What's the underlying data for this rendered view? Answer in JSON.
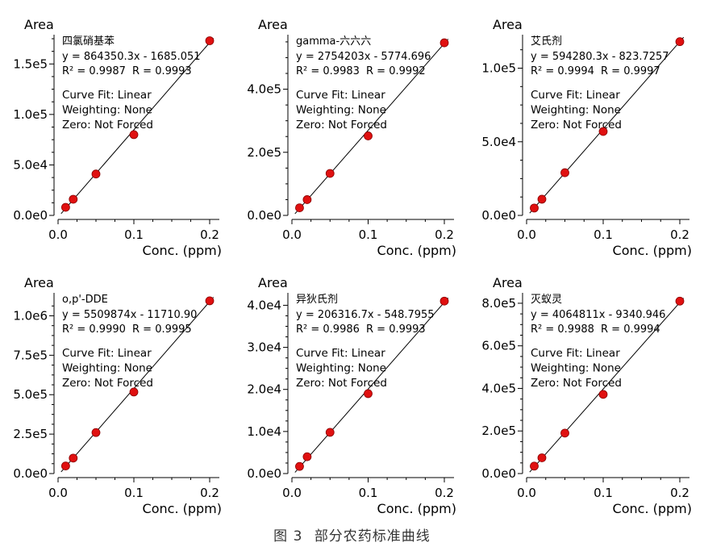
{
  "figure": {
    "caption_label": "图 3",
    "caption_text": "部分农药标准曲线"
  },
  "chart_data": [
    {
      "type": "scatter",
      "title": "四氯硝基苯",
      "xlabel": "Conc. (ppm)",
      "ylabel": "Area",
      "xlim": [
        0,
        0.2
      ],
      "ylim": [
        0,
        175000
      ],
      "xticks": [
        0.0,
        0.1,
        0.2
      ],
      "xtick_labels": [
        "0.0",
        "0.1",
        "0.2"
      ],
      "yticks": [
        0,
        50000,
        100000,
        150000
      ],
      "ytick_labels": [
        "0.0e0",
        "5.0e4",
        "1.0e5",
        "1.5e5"
      ],
      "equation": "y = 864350.3x - 1685.051",
      "r_squared": "R² = 0.9987",
      "r_value": "R = 0.9993",
      "slope": 864350.3,
      "intercept": -1685.051,
      "notes": [
        "Curve Fit: Linear",
        "Weighting: None",
        "Zero: Not Forced"
      ],
      "x": [
        0.01,
        0.02,
        0.05,
        0.1,
        0.2
      ],
      "y": [
        8000,
        16000,
        41000,
        80000,
        173000
      ]
    },
    {
      "type": "scatter",
      "title": "gamma-六六六",
      "xlabel": "Conc. (ppm)",
      "ylabel": "Area",
      "xlim": [
        0,
        0.2
      ],
      "ylim": [
        0,
        560000
      ],
      "xticks": [
        0.0,
        0.1,
        0.2
      ],
      "xtick_labels": [
        "0.0",
        "0.1",
        "0.2"
      ],
      "yticks": [
        0,
        200000,
        400000
      ],
      "ytick_labels": [
        "0.0e0",
        "2.0e5",
        "4.0e5"
      ],
      "equation": "y = 2754203x - 5774.696",
      "r_squared": "R² = 0.9983",
      "r_value": "R = 0.9992",
      "slope": 2754203,
      "intercept": -5774.696,
      "notes": [
        "Curve Fit: Linear",
        "Weighting: None",
        "Zero: Not Forced"
      ],
      "x": [
        0.01,
        0.02,
        0.05,
        0.1,
        0.2
      ],
      "y": [
        24000,
        50000,
        133000,
        252000,
        547000
      ]
    },
    {
      "type": "scatter",
      "title": "艾氏剂",
      "xlabel": "Conc. (ppm)",
      "ylabel": "Area",
      "xlim": [
        0,
        0.2
      ],
      "ylim": [
        0,
        120000
      ],
      "xticks": [
        0.0,
        0.1,
        0.2
      ],
      "xtick_labels": [
        "0.0",
        "0.1",
        "0.2"
      ],
      "yticks": [
        0,
        50000,
        100000
      ],
      "ytick_labels": [
        "0.0e0",
        "5.0e4",
        "1.0e5"
      ],
      "equation": "y = 594280.3x - 823.7257",
      "r_squared": "R² = 0.9994",
      "r_value": "R = 0.9997",
      "slope": 594280.3,
      "intercept": -823.7257,
      "notes": [
        "Curve Fit: Linear",
        "Weighting: None",
        "Zero: Not Forced"
      ],
      "x": [
        0.01,
        0.02,
        0.05,
        0.1,
        0.2
      ],
      "y": [
        5000,
        11000,
        29000,
        57000,
        118000
      ]
    },
    {
      "type": "scatter",
      "title": "o,p'-DDE",
      "xlabel": "Conc. (ppm)",
      "ylabel": "Area",
      "xlim": [
        0,
        0.2
      ],
      "ylim": [
        0,
        1120000
      ],
      "xticks": [
        0.0,
        0.1,
        0.2
      ],
      "xtick_labels": [
        "0.0",
        "0.1",
        "0.2"
      ],
      "yticks": [
        0,
        250000,
        500000,
        750000,
        1000000
      ],
      "ytick_labels": [
        "0.0e0",
        "2.5e5",
        "5.0e5",
        "7.5e5",
        "1.0e6"
      ],
      "equation": "y = 5509874x - 11710.90",
      "r_squared": "R² = 0.9990",
      "r_value": "R = 0.9995",
      "slope": 5509874,
      "intercept": -11710.9,
      "notes": [
        "Curve Fit: Linear",
        "Weighting: None",
        "Zero: Not Forced"
      ],
      "x": [
        0.01,
        0.02,
        0.05,
        0.1,
        0.2
      ],
      "y": [
        48000,
        98000,
        260000,
        517000,
        1095000
      ]
    },
    {
      "type": "scatter",
      "title": "异狄氏剂",
      "xlabel": "Conc. (ppm)",
      "ylabel": "Area",
      "xlim": [
        0,
        0.2
      ],
      "ylim": [
        0,
        42000
      ],
      "xticks": [
        0.0,
        0.1,
        0.2
      ],
      "xtick_labels": [
        "0.0",
        "0.1",
        "0.2"
      ],
      "yticks": [
        0,
        10000,
        20000,
        30000,
        40000
      ],
      "ytick_labels": [
        "0.0e0",
        "1.0e4",
        "2.0e4",
        "3.0e4",
        "4.0e4"
      ],
      "equation": "y = 206316.7x - 548.7955",
      "r_squared": "R² = 0.9986",
      "r_value": "R = 0.9993",
      "slope": 206316.7,
      "intercept": -548.7955,
      "notes": [
        "Curve Fit: Linear",
        "Weighting: None",
        "Zero: Not Forced"
      ],
      "x": [
        0.01,
        0.02,
        0.05,
        0.1,
        0.2
      ],
      "y": [
        1700,
        4000,
        9800,
        19000,
        41000
      ]
    },
    {
      "type": "scatter",
      "title": "灭蚁灵",
      "xlabel": "Conc. (ppm)",
      "ylabel": "Area",
      "xlim": [
        0,
        0.2
      ],
      "ylim": [
        0,
        830000
      ],
      "xticks": [
        0.0,
        0.1,
        0.2
      ],
      "xtick_labels": [
        "0.0",
        "0.1",
        "0.2"
      ],
      "yticks": [
        0,
        200000,
        400000,
        600000,
        800000
      ],
      "ytick_labels": [
        "0.0e0",
        "2.0e5",
        "4.0e5",
        "6.0e5",
        "8.0e5"
      ],
      "equation": "y = 4064811x - 9340.946",
      "r_squared": "R² = 0.9988",
      "r_value": "R = 0.9994",
      "slope": 4064811,
      "intercept": -9340.946,
      "notes": [
        "Curve Fit: Linear",
        "Weighting: None",
        "Zero: Not Forced"
      ],
      "x": [
        0.01,
        0.02,
        0.05,
        0.1,
        0.2
      ],
      "y": [
        35000,
        74000,
        190000,
        372000,
        810000
      ]
    }
  ]
}
